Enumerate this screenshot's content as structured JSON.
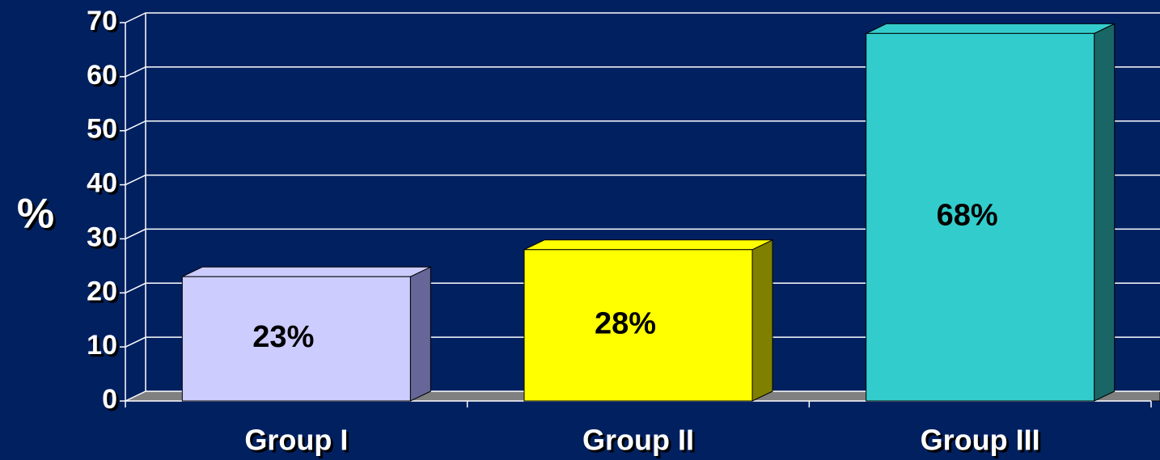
{
  "chart_data": {
    "type": "bar3d",
    "y_label": "%",
    "categories": [
      "Group I",
      "Group II",
      "Group III"
    ],
    "values": [
      23,
      28,
      68
    ],
    "value_labels": [
      "23%",
      "28%",
      "68%"
    ],
    "colors": [
      "#ccccff",
      "#ffff00",
      "#33cccc"
    ],
    "side_colors": [
      "#666699",
      "#808000",
      "#1a6666"
    ],
    "ylim": [
      0,
      70
    ],
    "yticks": [
      0,
      10,
      20,
      30,
      40,
      50,
      60,
      70
    ],
    "grid": true
  }
}
